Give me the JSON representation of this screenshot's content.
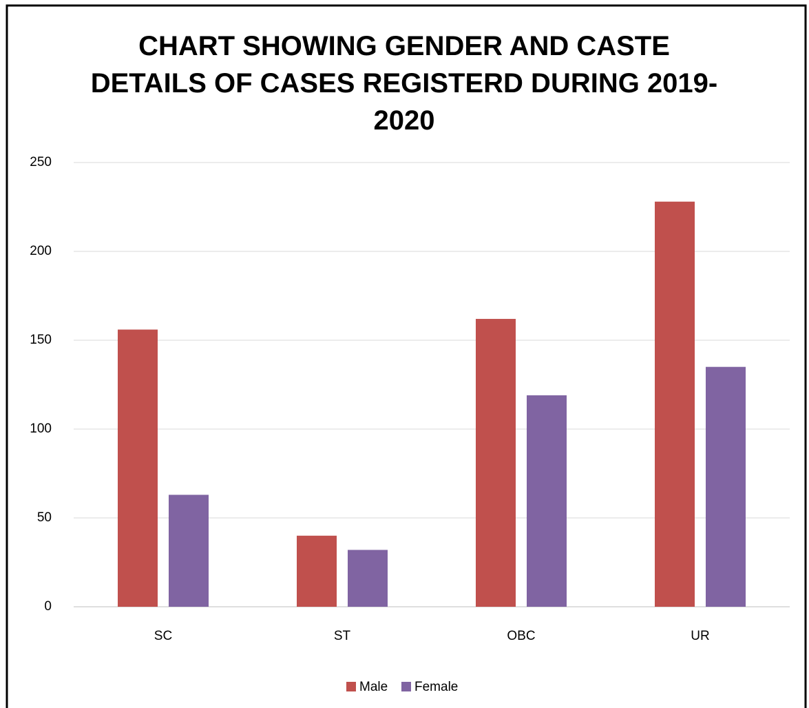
{
  "chart_data": {
    "type": "bar",
    "title": "CHART SHOWING GENDER AND CASTE DETAILS OF CASES REGISTERD DURING 2019-2020",
    "categories": [
      "SC",
      "ST",
      "OBC",
      "UR"
    ],
    "series": [
      {
        "name": "Male",
        "color": "#c0504d",
        "values": [
          156,
          40,
          162,
          228
        ]
      },
      {
        "name": "Female",
        "color": "#8064a2",
        "values": [
          63,
          32,
          119,
          135
        ]
      }
    ],
    "ylim": [
      0,
      250
    ],
    "yticks": [
      0,
      50,
      100,
      150,
      200,
      250
    ],
    "grid": true,
    "legend": "bottom"
  }
}
